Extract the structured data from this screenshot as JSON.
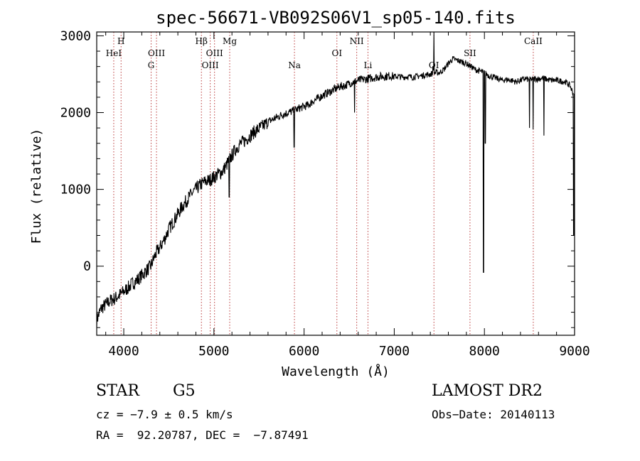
{
  "chart_data": {
    "type": "line",
    "title": "spec-56671-VB092S06V1_sp05-140.fits",
    "xlabel": "Wavelength (Å)",
    "ylabel": "Flux (relative)",
    "xlim": [
      3700,
      9000
    ],
    "ylim": [
      -900,
      3050
    ],
    "xticks": [
      4000,
      5000,
      6000,
      7000,
      8000,
      9000
    ],
    "yticks": [
      0,
      1000,
      2000,
      3000
    ],
    "series": [
      {
        "x": [
          3700,
          3750,
          3800,
          3850,
          3900,
          3950,
          4000,
          4050,
          4100,
          4150,
          4200,
          4250,
          4300,
          4350,
          4400,
          4450,
          4500,
          4550,
          4600,
          4650,
          4700,
          4750,
          4800,
          4850,
          4900,
          4950,
          5000,
          5050,
          5100,
          5150,
          5200,
          5250,
          5300,
          5350,
          5400,
          5450,
          5500,
          5550,
          5600,
          5650,
          5700,
          5750,
          5800,
          5850,
          5900,
          5950,
          6000,
          6050,
          6100,
          6150,
          6200,
          6250,
          6300,
          6350,
          6400,
          6450,
          6500,
          6550,
          6600,
          6650,
          6700,
          6750,
          6800,
          6850,
          6900,
          6950,
          7000,
          7050,
          7100,
          7150,
          7200,
          7250,
          7300,
          7350,
          7400,
          7450,
          7500,
          7550,
          7600,
          7650,
          7700,
          7750,
          7800,
          7850,
          7900,
          7950,
          8000,
          8050,
          8100,
          8150,
          8200,
          8250,
          8300,
          8350,
          8400,
          8450,
          8500,
          8550,
          8600,
          8650,
          8700,
          8750,
          8800,
          8850,
          8900,
          8950,
          9000
        ],
        "y": [
          -700,
          -550,
          -500,
          -450,
          -420,
          -380,
          -330,
          -280,
          -220,
          -180,
          -120,
          -60,
          0,
          150,
          240,
          350,
          480,
          580,
          680,
          780,
          860,
          940,
          1000,
          1060,
          1100,
          1120,
          1160,
          1200,
          1240,
          1340,
          1440,
          1540,
          1600,
          1640,
          1700,
          1750,
          1790,
          1830,
          1880,
          1910,
          1940,
          1970,
          1990,
          2010,
          2030,
          2060,
          2080,
          2100,
          2150,
          2180,
          2220,
          2250,
          2280,
          2310,
          2340,
          2350,
          2380,
          2400,
          2420,
          2430,
          2440,
          2450,
          2460,
          2470,
          2470,
          2480,
          2470,
          2470,
          2460,
          2470,
          2460,
          2470,
          2480,
          2490,
          2500,
          2520,
          2520,
          2560,
          2640,
          2700,
          2680,
          2660,
          2640,
          2600,
          2560,
          2540,
          2520,
          2480,
          2460,
          2440,
          2420,
          2430,
          2420,
          2400,
          2420,
          2440,
          2430,
          2440,
          2440,
          2450,
          2430,
          2420,
          2420,
          2410,
          2400,
          2350,
          2200
        ]
      }
    ],
    "dips": [
      {
        "x": 5170,
        "y": 900
      },
      {
        "x": 5890,
        "y": 1550
      },
      {
        "x": 6560,
        "y": 2000
      },
      {
        "x": 7430,
        "y": 2600
      },
      {
        "x": 7990,
        "y": -80
      },
      {
        "x": 8010,
        "y": 1600
      },
      {
        "x": 8500,
        "y": 1800
      },
      {
        "x": 8540,
        "y": 1780
      },
      {
        "x": 8660,
        "y": 1700
      },
      {
        "x": 8990,
        "y": 400
      }
    ],
    "spikes": [
      {
        "x": 7440,
        "y": 3050
      }
    ],
    "lines": [
      {
        "label": "HeI",
        "x": 3889,
        "row": 2
      },
      {
        "label": "H",
        "x": 3970,
        "row": 1
      },
      {
        "label": "OIII",
        "x": 4363,
        "row": 2
      },
      {
        "label": "G",
        "x": 4304,
        "row": 3
      },
      {
        "label": "Hβ",
        "x": 4861,
        "row": 1
      },
      {
        "label": "OIII",
        "x": 4959,
        "row": 3
      },
      {
        "label": "OIII",
        "x": 5007,
        "row": 2
      },
      {
        "label": "Mg",
        "x": 5175,
        "row": 1
      },
      {
        "label": "Na",
        "x": 5893,
        "row": 3
      },
      {
        "label": "OI",
        "x": 6364,
        "row": 2
      },
      {
        "label": "NII",
        "x": 6584,
        "row": 1
      },
      {
        "label": "Li",
        "x": 6708,
        "row": 3
      },
      {
        "label": "OI",
        "x": 7440,
        "row": 3
      },
      {
        "label": "SII",
        "x": 7840,
        "row": 2
      },
      {
        "label": "CaII",
        "x": 8542,
        "row": 1
      }
    ]
  },
  "info": {
    "object_class": "STAR",
    "subclass": "G5",
    "survey": "LAMOST DR2",
    "cz": "cz = −7.9 ± 0.5 km/s",
    "obs_date": "Obs−Date: 20140113",
    "coords": "RA =  92.20787, DEC =  −7.87491"
  },
  "colors": {
    "line_marker": "#b22222",
    "spectrum": "#000000"
  }
}
